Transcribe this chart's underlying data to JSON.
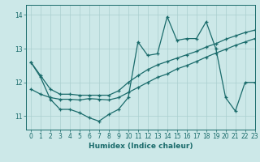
{
  "xlabel": "Humidex (Indice chaleur)",
  "bg_color": "#cce8e8",
  "grid_color": "#aacfcf",
  "line_color": "#1a6b6b",
  "xlim": [
    -0.5,
    23
  ],
  "ylim": [
    10.6,
    14.3
  ],
  "yticks": [
    11,
    12,
    13,
    14
  ],
  "xticks": [
    0,
    1,
    2,
    3,
    4,
    5,
    6,
    7,
    8,
    9,
    10,
    11,
    12,
    13,
    14,
    15,
    16,
    17,
    18,
    19,
    20,
    21,
    22,
    23
  ],
  "line1_y": [
    12.6,
    12.15,
    11.5,
    11.2,
    11.2,
    11.1,
    10.95,
    10.85,
    11.05,
    11.2,
    11.55,
    13.2,
    12.8,
    12.85,
    13.95,
    13.25,
    13.3,
    13.3,
    13.8,
    13.0,
    11.55,
    11.15,
    12.0,
    12.0
  ],
  "line2_y": [
    11.8,
    11.65,
    11.55,
    11.5,
    11.5,
    11.48,
    11.52,
    11.5,
    11.48,
    11.55,
    11.7,
    11.85,
    12.0,
    12.15,
    12.25,
    12.4,
    12.5,
    12.62,
    12.75,
    12.87,
    12.98,
    13.1,
    13.2,
    13.3
  ],
  "line3_y": [
    12.6,
    12.2,
    11.8,
    11.65,
    11.65,
    11.62,
    11.62,
    11.62,
    11.62,
    11.75,
    12.0,
    12.2,
    12.38,
    12.52,
    12.62,
    12.72,
    12.82,
    12.92,
    13.05,
    13.15,
    13.28,
    13.38,
    13.48,
    13.55
  ]
}
